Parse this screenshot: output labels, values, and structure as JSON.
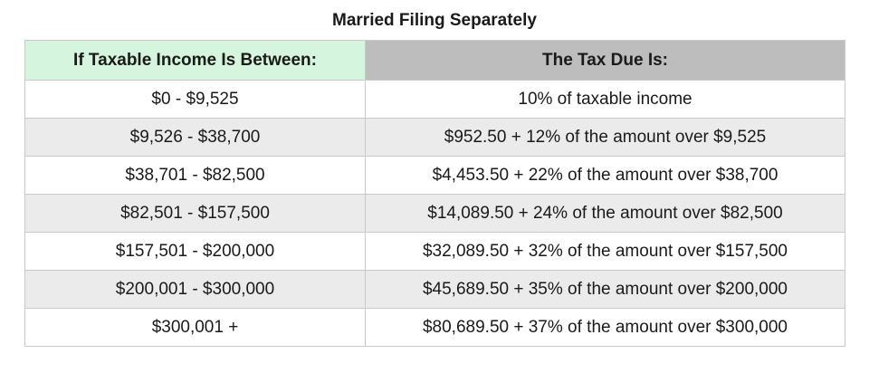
{
  "title": "Married Filing Separately",
  "headers": {
    "income": "If Taxable Income Is Between:",
    "tax": "The Tax Due Is:"
  },
  "rows": [
    {
      "income": "$0 - $9,525",
      "tax": "10% of taxable income"
    },
    {
      "income": "$9,526 - $38,700",
      "tax": "$952.50 + 12% of the amount over $9,525"
    },
    {
      "income": "$38,701 - $82,500",
      "tax": "$4,453.50 + 22% of the amount over $38,700"
    },
    {
      "income": "$82,501 - $157,500",
      "tax": "$14,089.50 + 24% of the amount over $82,500"
    },
    {
      "income": "$157,501 - $200,000",
      "tax": "$32,089.50 + 32% of the amount over $157,500"
    },
    {
      "income": "$200,001 - $300,000",
      "tax": "$45,689.50 + 35% of the amount over $200,000"
    },
    {
      "income": "$300,001 +",
      "tax": "$80,689.50 + 37% of the amount over $300,000"
    }
  ],
  "colors": {
    "income_header_bg": "#d6f5de",
    "tax_header_bg": "#bdbdbd",
    "alt_row_bg": "#ebebeb"
  }
}
